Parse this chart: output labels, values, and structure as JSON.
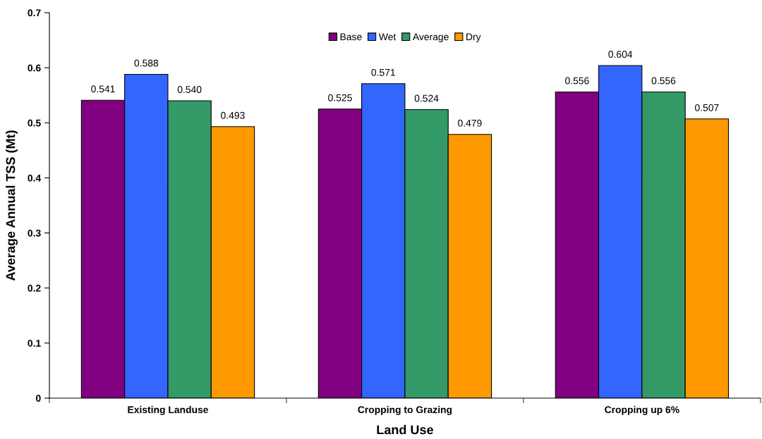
{
  "chart_data": {
    "type": "bar",
    "xlabel": "Land Use",
    "ylabel": "Average Annual TSS (Mt)",
    "categories": [
      "Existing Landuse",
      "Cropping to Grazing",
      "Cropping up 6%"
    ],
    "series": [
      {
        "name": "Base",
        "color": "#800080",
        "values": [
          0.541,
          0.525,
          0.556
        ],
        "value_labels": [
          "0.541",
          "0.525",
          "0.556"
        ]
      },
      {
        "name": "Wet",
        "color": "#3366ff",
        "values": [
          0.588,
          0.571,
          0.604
        ],
        "value_labels": [
          "0.588",
          "0.571",
          "0.604"
        ]
      },
      {
        "name": "Average",
        "color": "#339966",
        "values": [
          0.54,
          0.524,
          0.556
        ],
        "value_labels": [
          "0.540",
          "0.524",
          "0.556"
        ]
      },
      {
        "name": "Dry",
        "color": "#ff9900",
        "values": [
          0.493,
          0.479,
          0.507
        ],
        "value_labels": [
          "0.493",
          "0.479",
          "0.507"
        ]
      }
    ],
    "ylim": [
      0,
      0.7
    ],
    "yticks": [
      0,
      0.1,
      0.2,
      0.3,
      0.4,
      0.5,
      0.6,
      0.7
    ],
    "grid": false,
    "legend": "top"
  }
}
